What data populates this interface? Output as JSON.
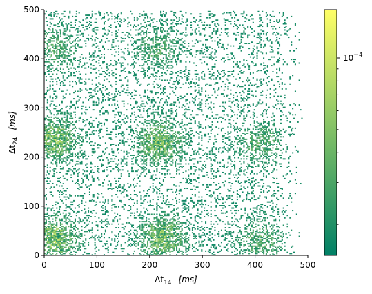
{
  "chart_data": {
    "type": "heatmap",
    "title": "",
    "xlabel": {
      "symbol": "Δt",
      "sub": "14",
      "unit": "[ms]"
    },
    "ylabel": {
      "symbol": "Δt",
      "sub": "24",
      "unit": "[ms]"
    },
    "xlim": [
      0,
      500
    ],
    "ylim": [
      0,
      500
    ],
    "x_ticks": [
      "0",
      "100",
      "200",
      "300",
      "400",
      "500"
    ],
    "y_ticks": [
      "0",
      "100",
      "200",
      "300",
      "400",
      "500"
    ],
    "bin_width_ms": 2.5,
    "colorbar": {
      "scale": "log",
      "colormap": "summer",
      "major_tick_base": "10",
      "major_tick_exp": "−4",
      "min_color": "#008066",
      "max_color": "#ffff66"
    },
    "clusters_ms": [
      {
        "x": 20,
        "y": 235,
        "strength": 1.0
      },
      {
        "x": 220,
        "y": 230,
        "strength": 1.0
      },
      {
        "x": 20,
        "y": 35,
        "strength": 1.0
      },
      {
        "x": 225,
        "y": 35,
        "strength": 1.0
      },
      {
        "x": 410,
        "y": 230,
        "strength": 0.55
      },
      {
        "x": 410,
        "y": 30,
        "strength": 0.55
      },
      {
        "x": 20,
        "y": 420,
        "strength": 0.5
      },
      {
        "x": 215,
        "y": 420,
        "strength": 0.5
      }
    ],
    "grid": false,
    "legend": "colorbar-right"
  }
}
